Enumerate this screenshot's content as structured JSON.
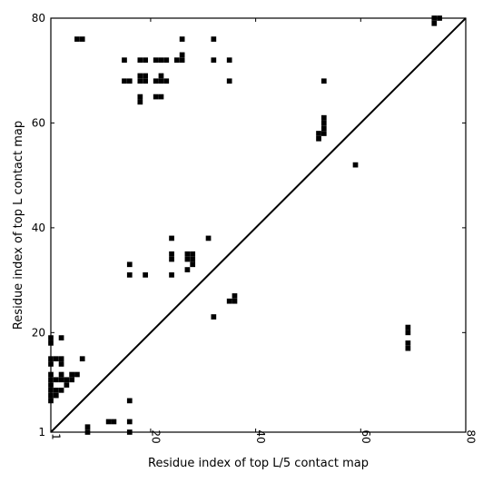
{
  "chart_data": {
    "type": "heatmap",
    "title": "",
    "xlabel": "Residue index of top L/5 contact map",
    "ylabel": "Residue index of top L contact map",
    "xlim": [
      1,
      80
    ],
    "ylim": [
      1,
      80
    ],
    "x_ticks": [
      1,
      20,
      40,
      60,
      80
    ],
    "y_ticks": [
      1,
      20,
      40,
      60,
      80
    ],
    "diagonal": true,
    "grid": false,
    "cell_color": "#000000",
    "upper_cells": [
      [
        6,
        76
      ],
      [
        7,
        76
      ],
      [
        26,
        76
      ],
      [
        32,
        76
      ],
      [
        15,
        72
      ],
      [
        18,
        72
      ],
      [
        19,
        72
      ],
      [
        21,
        72
      ],
      [
        22,
        72
      ],
      [
        23,
        72
      ],
      [
        25,
        72
      ],
      [
        26,
        72
      ],
      [
        26,
        73
      ],
      [
        32,
        72
      ],
      [
        35,
        72
      ],
      [
        15,
        68
      ],
      [
        16,
        68
      ],
      [
        18,
        68
      ],
      [
        19,
        68
      ],
      [
        18,
        69
      ],
      [
        19,
        69
      ],
      [
        21,
        68
      ],
      [
        22,
        68
      ],
      [
        23,
        68
      ],
      [
        22,
        69
      ],
      [
        35,
        68
      ],
      [
        53,
        68
      ],
      [
        21,
        65
      ],
      [
        22,
        65
      ],
      [
        18,
        65
      ],
      [
        18,
        64
      ],
      [
        53,
        61
      ],
      [
        53,
        60
      ],
      [
        53,
        59
      ],
      [
        53,
        58
      ],
      [
        52,
        58
      ],
      [
        52,
        57
      ],
      [
        59,
        52
      ],
      [
        24,
        38
      ],
      [
        31,
        38
      ],
      [
        24,
        35
      ],
      [
        27,
        35
      ],
      [
        28,
        35
      ],
      [
        27,
        34
      ],
      [
        28,
        34
      ],
      [
        24,
        34
      ],
      [
        28,
        33
      ],
      [
        16,
        33
      ],
      [
        27,
        32
      ],
      [
        16,
        31
      ],
      [
        19,
        31
      ],
      [
        24,
        31
      ],
      [
        36,
        27
      ],
      [
        35,
        26
      ],
      [
        36,
        26
      ],
      [
        32,
        23
      ],
      [
        74,
        80
      ],
      [
        75,
        80
      ],
      [
        74,
        79
      ]
    ],
    "lower_cells": [
      [
        1,
        19
      ],
      [
        1,
        18
      ],
      [
        3,
        19
      ],
      [
        1,
        15
      ],
      [
        2,
        15
      ],
      [
        3,
        15
      ],
      [
        1,
        14
      ],
      [
        3,
        14
      ],
      [
        7,
        15
      ],
      [
        69,
        21
      ],
      [
        69,
        20
      ],
      [
        69,
        18
      ],
      [
        69,
        17
      ],
      [
        1,
        12
      ],
      [
        3,
        12
      ],
      [
        5,
        12
      ],
      [
        6,
        12
      ],
      [
        1,
        11
      ],
      [
        2,
        11
      ],
      [
        3,
        11
      ],
      [
        4,
        11
      ],
      [
        5,
        11
      ],
      [
        1,
        10
      ],
      [
        4,
        10
      ],
      [
        1,
        9
      ],
      [
        2,
        9
      ],
      [
        3,
        9
      ],
      [
        1,
        8
      ],
      [
        2,
        8
      ],
      [
        1,
        7
      ],
      [
        16,
        7
      ],
      [
        12,
        3
      ],
      [
        13,
        3
      ],
      [
        16,
        3
      ],
      [
        8,
        2
      ],
      [
        8,
        1
      ],
      [
        16,
        1
      ]
    ]
  }
}
